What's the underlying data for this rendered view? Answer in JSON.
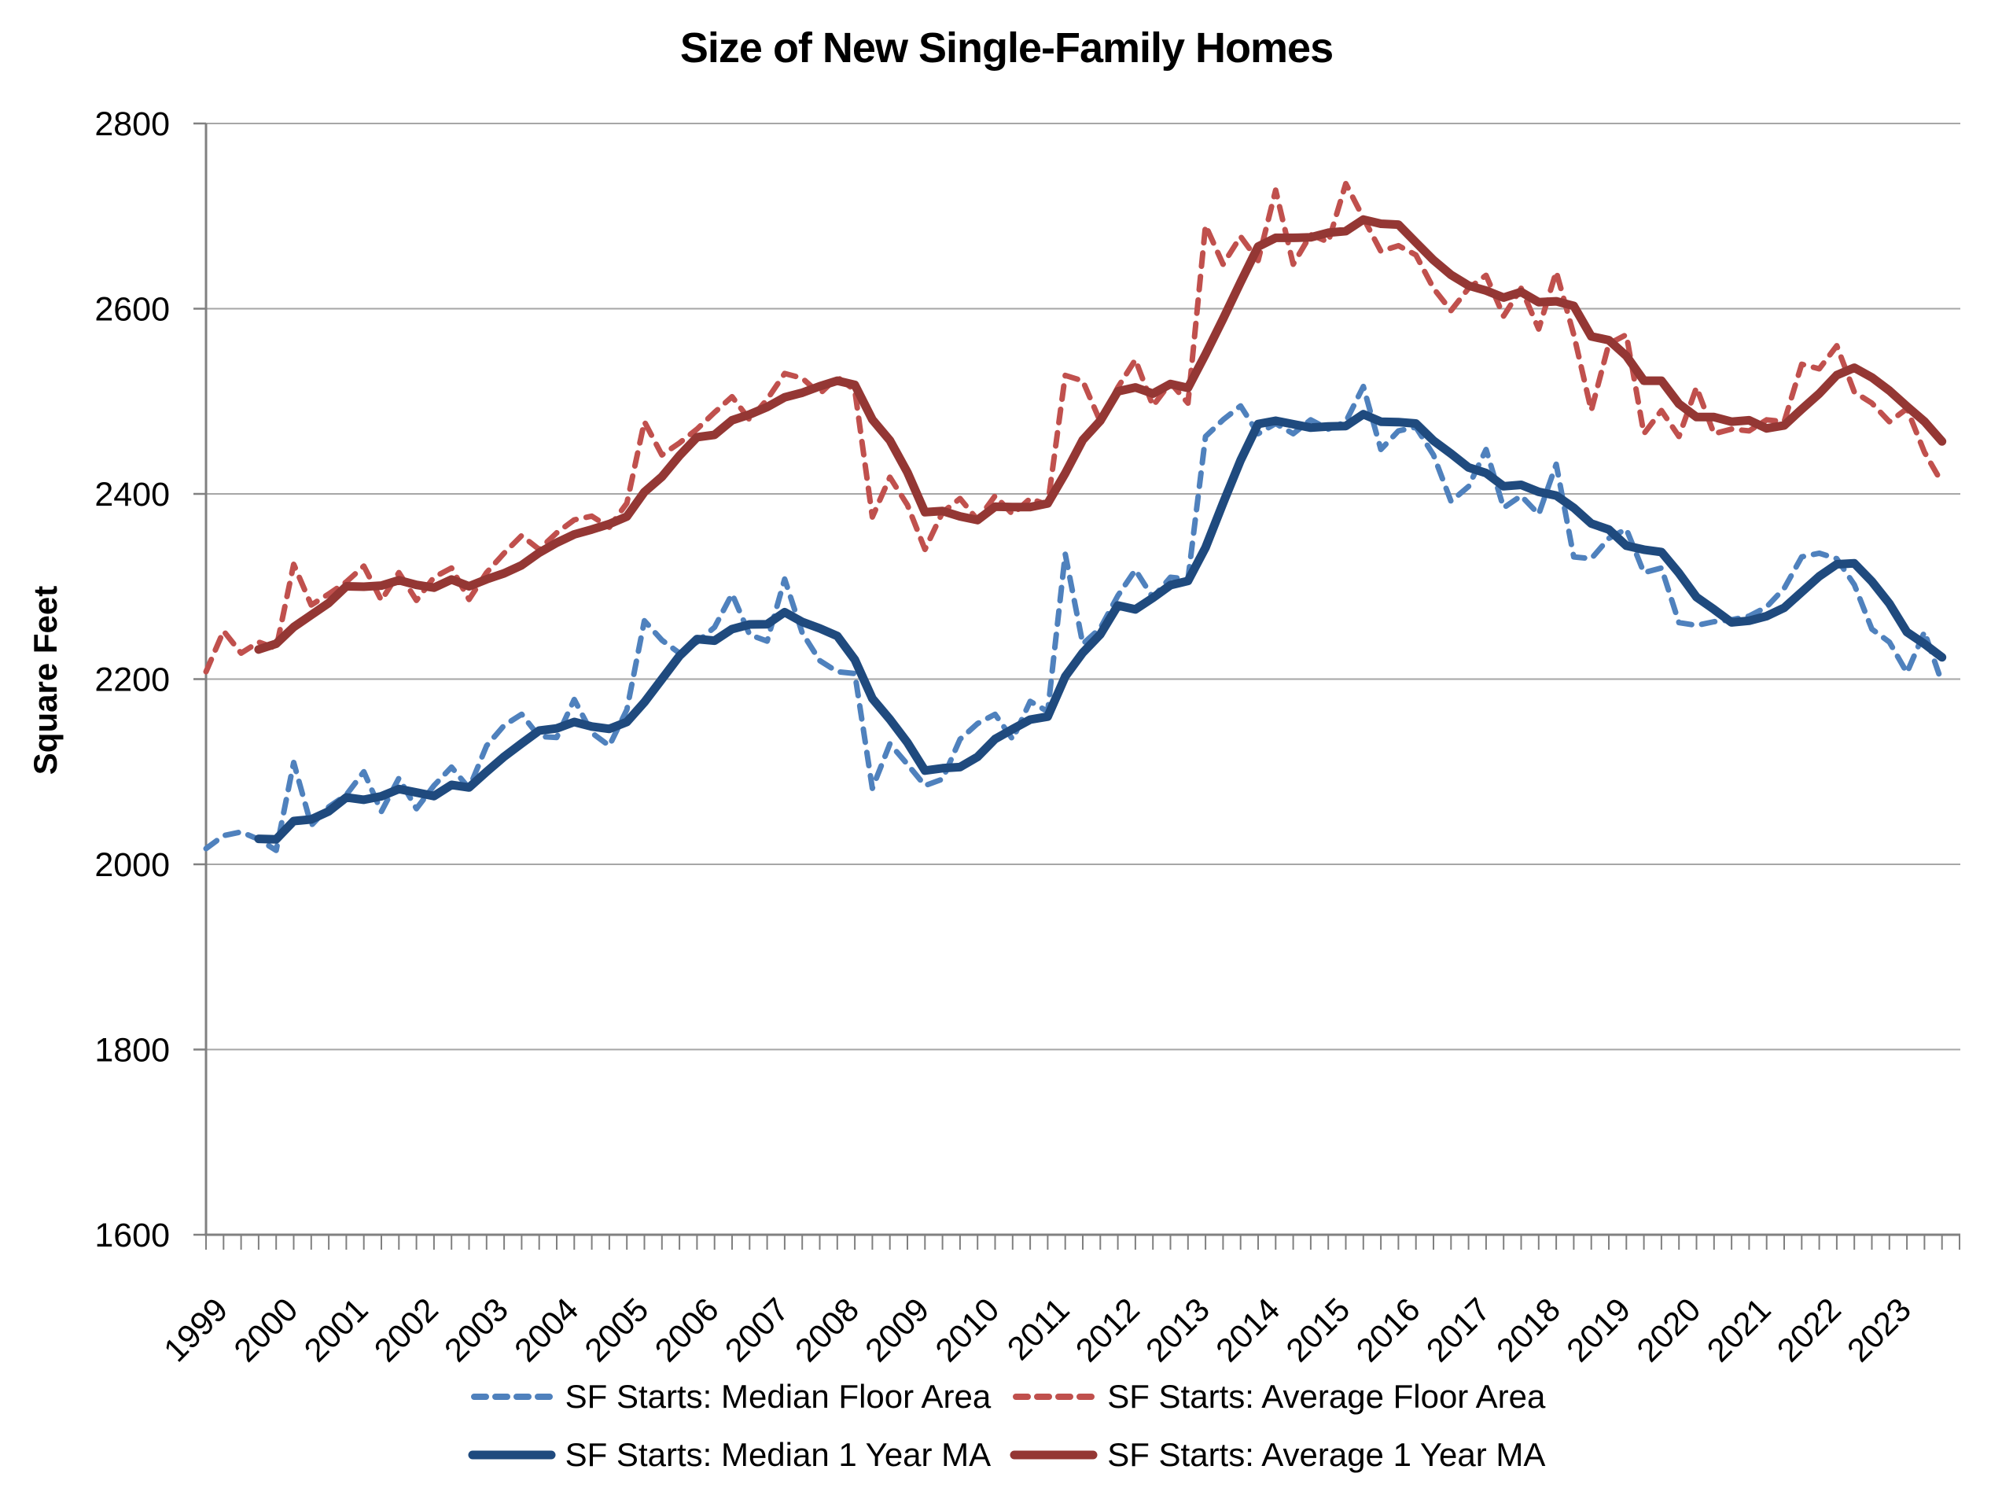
{
  "title": "Size of New Single-Family Homes",
  "y_axis": {
    "label": "Square Feet",
    "min": 1600,
    "max": 2800,
    "step": 200
  },
  "x_axis": {
    "start_year": 1999,
    "end_year": 2023,
    "frequency": "quarterly"
  },
  "colors": {
    "median_dashed": "#4F81BD",
    "average_dashed": "#C0504D",
    "median_ma_solid": "#1F4A7E",
    "average_ma_solid": "#943734",
    "gridline": "#A6A6A6",
    "axis": "#808080",
    "text": "#000000"
  },
  "chart_data": {
    "type": "line",
    "title": "Size of New Single-Family Homes",
    "xlabel": "",
    "ylabel": "Square Feet",
    "ylim": [
      1600,
      2800
    ],
    "ytick_step": 200,
    "x_start": "1999Q1",
    "x_end": "2023Q4",
    "frequency": "quarterly",
    "grid": "horizontal",
    "legend_position": "bottom",
    "series": [
      {
        "name": "SF Starts: Median Floor Area",
        "style": "dashed",
        "color": "#4F81BD",
        "values": [
          2017,
          2031,
          2035,
          2027,
          2015,
          2110,
          2042,
          2062,
          2075,
          2100,
          2057,
          2093,
          2060,
          2085,
          2105,
          2082,
          2128,
          2150,
          2162,
          2138,
          2137,
          2178,
          2142,
          2128,
          2167,
          2263,
          2242,
          2228,
          2240,
          2256,
          2292,
          2248,
          2241,
          2308,
          2250,
          2220,
          2208,
          2206,
          2082,
          2130,
          2108,
          2085,
          2092,
          2135,
          2152,
          2162,
          2135,
          2176,
          2165,
          2335,
          2238,
          2255,
          2290,
          2318,
          2288,
          2310,
          2308,
          2462,
          2480,
          2495,
          2465,
          2476,
          2465,
          2480,
          2470,
          2478,
          2516,
          2448,
          2468,
          2472,
          2442,
          2392,
          2408,
          2448,
          2385,
          2398,
          2378,
          2432,
          2332,
          2330,
          2352,
          2362,
          2315,
          2320,
          2261,
          2258,
          2262,
          2264,
          2268,
          2278,
          2298,
          2332,
          2336,
          2330,
          2302,
          2254,
          2240,
          2207,
          2251,
          2196
        ]
      },
      {
        "name": "SF Starts: Average Floor Area",
        "style": "dashed",
        "color": "#C0504D",
        "values": [
          2208,
          2252,
          2228,
          2240,
          2233,
          2324,
          2280,
          2292,
          2305,
          2322,
          2285,
          2315,
          2285,
          2310,
          2320,
          2286,
          2315,
          2336,
          2355,
          2340,
          2358,
          2372,
          2376,
          2364,
          2390,
          2478,
          2442,
          2455,
          2470,
          2488,
          2505,
          2480,
          2502,
          2530,
          2525,
          2508,
          2526,
          2512,
          2375,
          2418,
          2388,
          2340,
          2380,
          2395,
          2372,
          2398,
          2378,
          2395,
          2388,
          2528,
          2522,
          2478,
          2515,
          2545,
          2495,
          2520,
          2498,
          2690,
          2648,
          2678,
          2652,
          2728,
          2648,
          2680,
          2672,
          2735,
          2698,
          2662,
          2668,
          2658,
          2622,
          2598,
          2622,
          2636,
          2592,
          2622,
          2578,
          2640,
          2572,
          2490,
          2562,
          2572,
          2465,
          2490,
          2462,
          2515,
          2465,
          2470,
          2468,
          2480,
          2478,
          2540,
          2535,
          2560,
          2510,
          2498,
          2478,
          2492,
          2445,
          2412
        ]
      },
      {
        "name": "SF Starts: Median 1 Year MA",
        "style": "solid",
        "color": "#1F4A7E",
        "derived_from": 0,
        "ma_window": 4
      },
      {
        "name": "SF Starts: Average 1 Year MA",
        "style": "solid",
        "color": "#943734",
        "derived_from": 1,
        "ma_window": 4
      }
    ]
  }
}
